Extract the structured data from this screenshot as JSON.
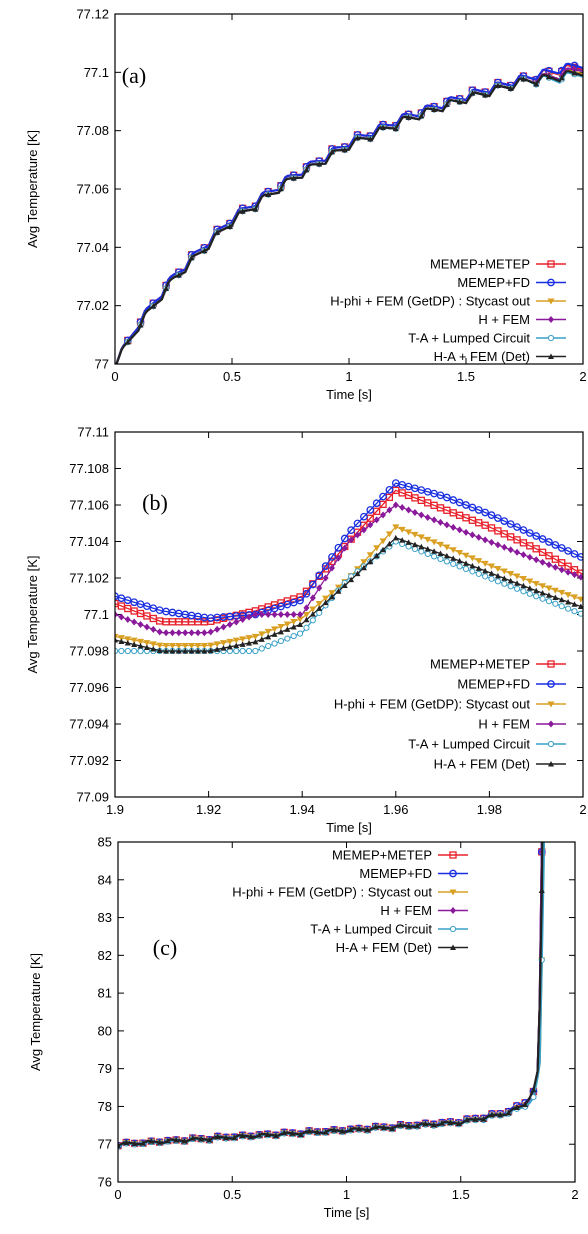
{
  "chart_data": [
    {
      "type": "line",
      "panel_label": "(a)",
      "xlabel": "Time [s]",
      "ylabel": "Avg Temperature [K]",
      "xlim": [
        0,
        2
      ],
      "ylim": [
        77,
        77.12
      ],
      "xticks": [
        0,
        0.5,
        1,
        1.5,
        2
      ],
      "xtick_labels": [
        "0",
        "0.5",
        "1",
        "1.5",
        "2"
      ],
      "yticks": [
        77,
        77.02,
        77.04,
        77.06,
        77.08,
        77.1,
        77.12
      ],
      "ytick_labels": [
        "77",
        "77.02",
        "77.04",
        "77.06",
        "77.08",
        "77.1",
        "77.12"
      ],
      "legend_position": "bottom-right",
      "series": [
        {
          "name": "MEMEP+METEP",
          "color": "#e8202a",
          "marker": "square-open",
          "x": [
            0,
            0.1,
            0.25,
            0.5,
            0.75,
            1.0,
            1.25,
            1.5,
            1.75,
            1.9,
            2.0
          ],
          "y": [
            77.0,
            77.014,
            77.03,
            77.05,
            77.064,
            77.076,
            77.085,
            77.092,
            77.098,
            77.1007,
            77.1022
          ]
        },
        {
          "name": "MEMEP+FD",
          "color": "#1a2fe0",
          "marker": "circle-open",
          "x": [
            0,
            0.1,
            0.25,
            0.5,
            0.75,
            1.0,
            1.25,
            1.5,
            1.75,
            1.9,
            2.0
          ],
          "y": [
            77.0,
            77.014,
            77.03,
            77.05,
            77.064,
            77.076,
            77.085,
            77.092,
            77.098,
            77.101,
            77.103
          ]
        },
        {
          "name": "H-phi + FEM (GetDP) : Stycast out",
          "color": "#d9a023",
          "marker": "triangle-down",
          "x": [
            0,
            0.1,
            0.25,
            0.5,
            0.75,
            1.0,
            1.25,
            1.5,
            1.75,
            1.9,
            2.0
          ],
          "y": [
            77.0,
            77.013,
            77.029,
            77.049,
            77.063,
            77.075,
            77.084,
            77.091,
            77.097,
            77.099,
            77.1008
          ]
        },
        {
          "name": "H + FEM",
          "color": "#8a1a9b",
          "marker": "diamond",
          "x": [
            0,
            0.1,
            0.25,
            0.5,
            0.75,
            1.0,
            1.25,
            1.5,
            1.75,
            1.9,
            2.0
          ],
          "y": [
            77.0,
            77.013,
            77.029,
            77.049,
            77.063,
            77.075,
            77.084,
            77.091,
            77.097,
            77.099,
            77.102
          ]
        },
        {
          "name": "T-A + Lumped Circuit",
          "color": "#3aa0c8",
          "marker": "circle-open-small",
          "x": [
            0,
            0.1,
            0.25,
            0.5,
            0.75,
            1.0,
            1.25,
            1.5,
            1.75,
            1.9,
            2.0
          ],
          "y": [
            77.0,
            77.013,
            77.029,
            77.049,
            77.063,
            77.075,
            77.084,
            77.091,
            77.097,
            77.098,
            77.1
          ]
        },
        {
          "name": "H-A + FEM (Det)",
          "color": "#222222",
          "marker": "triangle-up",
          "x": [
            0,
            0.1,
            0.25,
            0.5,
            0.75,
            1.0,
            1.25,
            1.5,
            1.75,
            1.9,
            2.0
          ],
          "y": [
            77.0,
            77.013,
            77.029,
            77.049,
            77.063,
            77.075,
            77.084,
            77.091,
            77.097,
            77.0985,
            77.1004
          ]
        }
      ]
    },
    {
      "type": "line",
      "panel_label": "(b)",
      "xlabel": "Time [s]",
      "ylabel": "Avg Temperature [K]",
      "xlim": [
        1.9,
        2
      ],
      "ylim": [
        77.09,
        77.11
      ],
      "xticks": [
        1.9,
        1.92,
        1.94,
        1.96,
        1.98,
        2
      ],
      "xtick_labels": [
        "1.9",
        "1.92",
        "1.94",
        "1.96",
        "1.98",
        "2"
      ],
      "yticks": [
        77.09,
        77.092,
        77.094,
        77.096,
        77.098,
        77.1,
        77.102,
        77.104,
        77.106,
        77.108,
        77.11
      ],
      "ytick_labels": [
        "77.09",
        "77.092",
        "77.094",
        "77.096",
        "77.098",
        "77.1",
        "77.102",
        "77.104",
        "77.106",
        "77.108",
        "77.11"
      ],
      "legend_position": "bottom-right",
      "series": [
        {
          "name": "MEMEP+METEP",
          "color": "#e8202a",
          "marker": "square-open",
          "x": [
            1.9,
            1.91,
            1.92,
            1.93,
            1.94,
            1.95,
            1.96,
            1.97,
            1.98,
            1.99,
            2.0
          ],
          "y": [
            77.1006,
            77.0996,
            77.0996,
            77.1002,
            77.101,
            77.104,
            77.1068,
            77.1058,
            77.1048,
            77.1036,
            77.1022
          ]
        },
        {
          "name": "MEMEP+FD",
          "color": "#1a2fe0",
          "marker": "circle-open",
          "x": [
            1.9,
            1.91,
            1.92,
            1.93,
            1.94,
            1.95,
            1.96,
            1.97,
            1.98,
            1.99,
            2.0
          ],
          "y": [
            77.101,
            77.1002,
            77.0998,
            77.1,
            77.1008,
            77.1045,
            77.1072,
            77.1065,
            77.1055,
            77.1043,
            77.1031
          ]
        },
        {
          "name": "H-phi + FEM (GetDP): Stycast out",
          "color": "#d9a023",
          "marker": "triangle-down",
          "x": [
            1.9,
            1.91,
            1.92,
            1.93,
            1.94,
            1.95,
            1.96,
            1.97,
            1.98,
            1.99,
            2.0
          ],
          "y": [
            77.0988,
            77.0983,
            77.0983,
            77.0988,
            77.0998,
            77.102,
            77.1048,
            77.1038,
            77.1027,
            77.1017,
            77.1008
          ]
        },
        {
          "name": "H + FEM",
          "color": "#8a1a9b",
          "marker": "diamond",
          "x": [
            1.9,
            1.91,
            1.92,
            1.93,
            1.94,
            1.95,
            1.96,
            1.97,
            1.98,
            1.99,
            2.0
          ],
          "y": [
            77.1,
            77.099,
            77.099,
            77.1,
            77.1,
            77.104,
            77.106,
            77.105,
            77.104,
            77.103,
            77.102
          ]
        },
        {
          "name": "T-A + Lumped Circuit",
          "color": "#3aa0c8",
          "marker": "circle-open-small",
          "x": [
            1.9,
            1.91,
            1.92,
            1.93,
            1.94,
            1.95,
            1.96,
            1.97,
            1.98,
            1.99,
            2.0
          ],
          "y": [
            77.098,
            77.098,
            77.098,
            77.098,
            77.099,
            77.102,
            77.104,
            77.103,
            77.102,
            77.101,
            77.1
          ]
        },
        {
          "name": "H-A + FEM (Det)",
          "color": "#222222",
          "marker": "triangle-up",
          "x": [
            1.9,
            1.91,
            1.92,
            1.93,
            1.94,
            1.95,
            1.96,
            1.97,
            1.98,
            1.99,
            2.0
          ],
          "y": [
            77.0986,
            77.098,
            77.098,
            77.0985,
            77.0995,
            77.1018,
            77.1042,
            77.1033,
            77.1023,
            77.1013,
            77.1004
          ]
        }
      ]
    },
    {
      "type": "line",
      "panel_label": "(c)",
      "xlabel": "Time [s]",
      "ylabel": "Avg Temperature [K]",
      "xlim": [
        0,
        2
      ],
      "ylim": [
        76,
        85
      ],
      "xticks": [
        0,
        0.5,
        1,
        1.5,
        2
      ],
      "xtick_labels": [
        "0",
        "0.5",
        "1",
        "1.5",
        "2"
      ],
      "yticks": [
        76,
        77,
        78,
        79,
        80,
        81,
        82,
        83,
        84,
        85
      ],
      "ytick_labels": [
        "76",
        "77",
        "78",
        "79",
        "80",
        "81",
        "82",
        "83",
        "84",
        "85"
      ],
      "legend_position": "top-center",
      "series": [
        {
          "name": "MEMEP+METEP",
          "color": "#e8202a",
          "marker": "square-open",
          "x": [
            0,
            0.5,
            1.0,
            1.5,
            1.7,
            1.78,
            1.82,
            1.84,
            1.85,
            1.855
          ],
          "y": [
            77.0,
            77.2,
            77.38,
            77.6,
            77.85,
            78.1,
            78.4,
            79.0,
            82.0,
            85.0
          ]
        },
        {
          "name": "MEMEP+FD",
          "color": "#1a2fe0",
          "marker": "circle-open",
          "x": [
            0,
            0.5,
            1.0,
            1.5,
            1.7,
            1.78,
            1.82,
            1.84,
            1.85,
            1.855
          ],
          "y": [
            77.0,
            77.2,
            77.38,
            77.6,
            77.85,
            78.1,
            78.4,
            79.0,
            82.0,
            85.0
          ]
        },
        {
          "name": "H-phi + FEM (GetDP) : Stycast out",
          "color": "#d9a023",
          "marker": "triangle-down",
          "x": [
            0,
            0.5,
            1.0,
            1.5,
            1.7,
            1.78,
            1.82,
            1.845,
            1.855,
            1.86
          ],
          "y": [
            77.0,
            77.19,
            77.37,
            77.58,
            77.82,
            78.05,
            78.3,
            79.0,
            82.0,
            85.0
          ]
        },
        {
          "name": "H + FEM",
          "color": "#8a1a9b",
          "marker": "diamond",
          "x": [
            0,
            0.5,
            1.0,
            1.5,
            1.7,
            1.78,
            1.82,
            1.84,
            1.85,
            1.855
          ],
          "y": [
            77.0,
            77.19,
            77.37,
            77.58,
            77.82,
            78.05,
            78.35,
            79.0,
            82.0,
            85.0
          ]
        },
        {
          "name": "T-A + Lumped Circuit",
          "color": "#3aa0c8",
          "marker": "circle-open-small",
          "x": [
            0,
            0.5,
            1.0,
            1.5,
            1.7,
            1.78,
            1.82,
            1.845,
            1.855,
            1.865
          ],
          "y": [
            76.98,
            77.17,
            77.35,
            77.56,
            77.8,
            78.0,
            78.25,
            79.0,
            82.0,
            85.0
          ]
        },
        {
          "name": "H-A + FEM (Det)",
          "color": "#222222",
          "marker": "triangle-up",
          "x": [
            0,
            0.5,
            1.0,
            1.5,
            1.7,
            1.78,
            1.82,
            1.84,
            1.85,
            1.858
          ],
          "y": [
            77.0,
            77.19,
            77.37,
            77.58,
            77.82,
            78.05,
            78.45,
            79.0,
            82.0,
            85.0
          ]
        }
      ]
    }
  ]
}
